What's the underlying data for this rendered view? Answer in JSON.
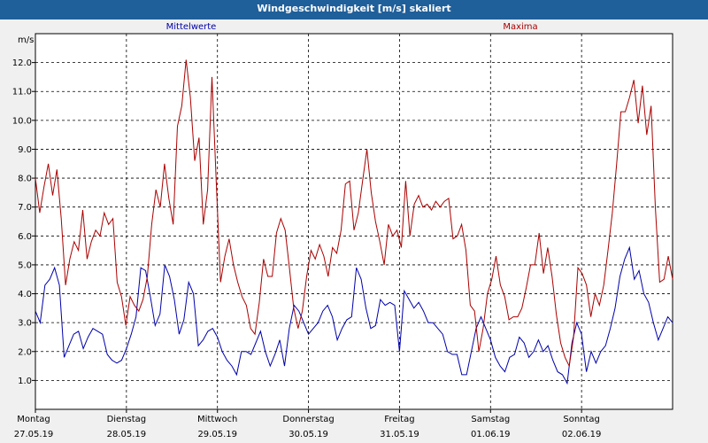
{
  "window": {
    "title": "Windgeschwindigkeit [m/s] skaliert"
  },
  "chart_data": {
    "type": "line",
    "title": "Windgeschwindigkeit [m/s] skaliert",
    "ylabel": "m/s",
    "ylim": [
      0,
      13
    ],
    "yticks": [
      "1.0",
      "2.0",
      "3.0",
      "4.0",
      "5.0",
      "6.0",
      "7.0",
      "8.0",
      "9.0",
      "10.0",
      "11.0",
      "12.0"
    ],
    "days": [
      {
        "name": "Montag",
        "date": "27.05.19"
      },
      {
        "name": "Dienstag",
        "date": "28.05.19"
      },
      {
        "name": "Mittwoch",
        "date": "29.05.19"
      },
      {
        "name": "Donnerstag",
        "date": "30.05.19"
      },
      {
        "name": "Freitag",
        "date": "31.05.19"
      },
      {
        "name": "Samstag",
        "date": "01.06.19"
      },
      {
        "name": "Sonntag",
        "date": "02.06.19"
      }
    ],
    "grid": true,
    "series": [
      {
        "name": "Mittelwerte",
        "color": "#0000aa",
        "values": [
          3.4,
          3.0,
          4.3,
          4.5,
          4.9,
          4.3,
          1.8,
          2.2,
          2.6,
          2.7,
          2.1,
          2.5,
          2.8,
          2.7,
          2.6,
          1.9,
          1.7,
          1.6,
          1.7,
          2.1,
          2.6,
          3.2,
          4.9,
          4.8,
          3.9,
          2.9,
          3.3,
          5.0,
          4.6,
          3.8,
          2.6,
          3.1,
          4.4,
          4.0,
          2.2,
          2.4,
          2.7,
          2.8,
          2.5,
          2.0,
          1.7,
          1.5,
          1.2,
          2.0,
          2.0,
          1.9,
          2.3,
          2.7,
          2.0,
          1.5,
          1.9,
          2.4,
          1.5,
          2.8,
          3.6,
          3.4,
          3.0,
          2.6,
          2.8,
          3.0,
          3.4,
          3.6,
          3.2,
          2.4,
          2.8,
          3.1,
          3.2,
          4.9,
          4.5,
          3.5,
          2.8,
          2.9,
          3.8,
          3.6,
          3.7,
          3.6,
          2.0,
          4.1,
          3.8,
          3.5,
          3.7,
          3.4,
          3.0,
          3.0,
          2.8,
          2.6,
          2.0,
          1.9,
          1.9,
          1.2,
          1.2,
          2.0,
          2.8,
          3.2,
          2.8,
          2.4,
          1.8,
          1.5,
          1.3,
          1.8,
          1.9,
          2.5,
          2.3,
          1.8,
          2.0,
          2.4,
          2.0,
          2.2,
          1.7,
          1.3,
          1.2,
          0.9,
          2.3,
          3.0,
          2.6,
          1.3,
          2.0,
          1.6,
          2.0,
          2.2,
          2.8,
          3.5,
          4.6,
          5.2,
          5.6,
          4.5,
          4.8,
          4.0,
          3.7,
          3.0,
          2.4,
          2.8,
          3.2,
          3.0
        ]
      },
      {
        "name": "Maxima",
        "color": "#aa0000",
        "values": [
          8.0,
          6.8,
          7.7,
          8.5,
          7.4,
          8.3,
          6.6,
          4.3,
          5.2,
          5.8,
          5.5,
          6.9,
          5.2,
          5.8,
          6.2,
          6.0,
          6.8,
          6.4,
          6.6,
          4.4,
          3.9,
          2.9,
          3.9,
          3.6,
          3.4,
          3.8,
          4.6,
          6.4,
          7.6,
          7.0,
          8.5,
          7.3,
          6.4,
          9.8,
          10.5,
          12.1,
          10.8,
          8.6,
          9.4,
          6.4,
          7.6,
          11.5,
          7.9,
          4.4,
          5.3,
          5.9,
          5.0,
          4.4,
          3.9,
          3.6,
          2.8,
          2.6,
          3.7,
          5.2,
          4.6,
          4.6,
          6.1,
          6.6,
          6.2,
          4.9,
          3.5,
          2.8,
          3.4,
          4.6,
          5.5,
          5.2,
          5.7,
          5.3,
          4.6,
          5.6,
          5.4,
          6.2,
          7.8,
          7.9,
          6.2,
          6.8,
          7.9,
          9.0,
          7.5,
          6.5,
          5.8,
          5.0,
          6.4,
          6.0,
          6.2,
          5.6,
          7.9,
          6.0,
          7.1,
          7.4,
          7.0,
          7.1,
          6.9,
          7.2,
          7.0,
          7.2,
          7.3,
          5.9,
          6.0,
          6.4,
          5.5,
          3.6,
          3.4,
          2.0,
          2.8,
          4.0,
          4.5,
          5.3,
          4.3,
          3.9,
          3.1,
          3.2,
          3.2,
          3.5,
          4.2,
          5.0,
          5.0,
          6.1,
          4.7,
          5.6,
          4.6,
          3.3,
          2.3,
          1.8,
          1.5,
          2.5,
          4.9,
          4.7,
          4.3,
          3.2,
          4.0,
          3.6,
          4.3,
          5.5,
          6.8,
          8.5,
          10.3,
          10.3,
          10.8,
          11.4,
          9.9,
          11.2,
          9.5,
          10.5,
          7.0,
          4.4,
          4.5,
          5.3,
          4.5
        ]
      }
    ]
  }
}
